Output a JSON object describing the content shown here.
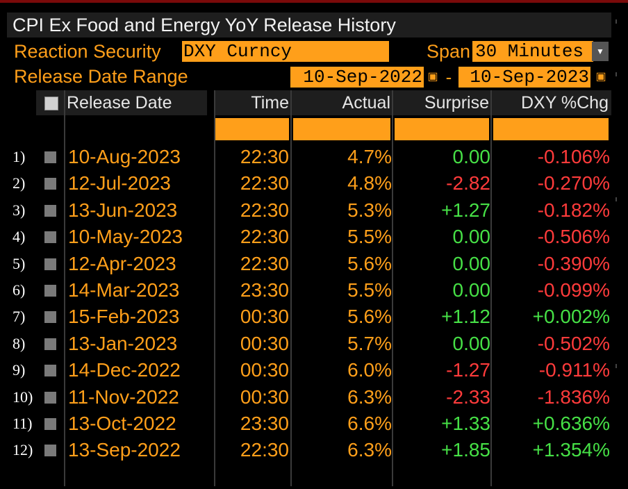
{
  "title": "CPI Ex Food and Energy YoY Release History",
  "controls": {
    "reaction_security_label": "Reaction Security",
    "reaction_security_value": "DXY Curncy",
    "span_label": "Span",
    "span_value": "30 Minutes",
    "release_date_range_label": "Release Date Range",
    "date_from": "10-Sep-2022",
    "date_to": "10-Sep-2023",
    "range_separator": "-"
  },
  "table": {
    "headers": [
      "Release Date",
      "Time",
      "Actual",
      "Surprise",
      "DXY %Chg"
    ],
    "rows": [
      {
        "num": "1)",
        "date": "10-Aug-2023",
        "time": "22:30",
        "actual": "4.7%",
        "surprise": "0.00",
        "chg": "-0.106%"
      },
      {
        "num": "2)",
        "date": "12-Jul-2023",
        "time": "22:30",
        "actual": "4.8%",
        "surprise": "-2.82",
        "chg": "-0.270%"
      },
      {
        "num": "3)",
        "date": "13-Jun-2023",
        "time": "22:30",
        "actual": "5.3%",
        "surprise": "+1.27",
        "chg": "-0.182%"
      },
      {
        "num": "4)",
        "date": "10-May-2023",
        "time": "22:30",
        "actual": "5.5%",
        "surprise": "0.00",
        "chg": "-0.506%"
      },
      {
        "num": "5)",
        "date": "12-Apr-2023",
        "time": "22:30",
        "actual": "5.6%",
        "surprise": "0.00",
        "chg": "-0.390%"
      },
      {
        "num": "6)",
        "date": "14-Mar-2023",
        "time": "23:30",
        "actual": "5.5%",
        "surprise": "0.00",
        "chg": "-0.099%"
      },
      {
        "num": "7)",
        "date": "15-Feb-2023",
        "time": "00:30",
        "actual": "5.6%",
        "surprise": "+1.12",
        "chg": "+0.002%"
      },
      {
        "num": "8)",
        "date": "13-Jan-2023",
        "time": "00:30",
        "actual": "5.7%",
        "surprise": "0.00",
        "chg": "-0.502%"
      },
      {
        "num": "9)",
        "date": "14-Dec-2022",
        "time": "00:30",
        "actual": "6.0%",
        "surprise": "-1.27",
        "chg": "-0.911%"
      },
      {
        "num": "10)",
        "date": "11-Nov-2022",
        "time": "00:30",
        "actual": "6.3%",
        "surprise": "-2.33",
        "chg": "-1.836%"
      },
      {
        "num": "11)",
        "date": "13-Oct-2022",
        "time": "23:30",
        "actual": "6.6%",
        "surprise": "+1.33",
        "chg": "+0.636%"
      },
      {
        "num": "12)",
        "date": "13-Sep-2022",
        "time": "22:30",
        "actual": "6.3%",
        "surprise": "+1.85",
        "chg": "+1.354%"
      }
    ]
  },
  "colors": {
    "orange": "#ff9f1a",
    "positive": "#46e046",
    "negative": "#ff3b3b",
    "header_bg": "#1e1e1e"
  }
}
